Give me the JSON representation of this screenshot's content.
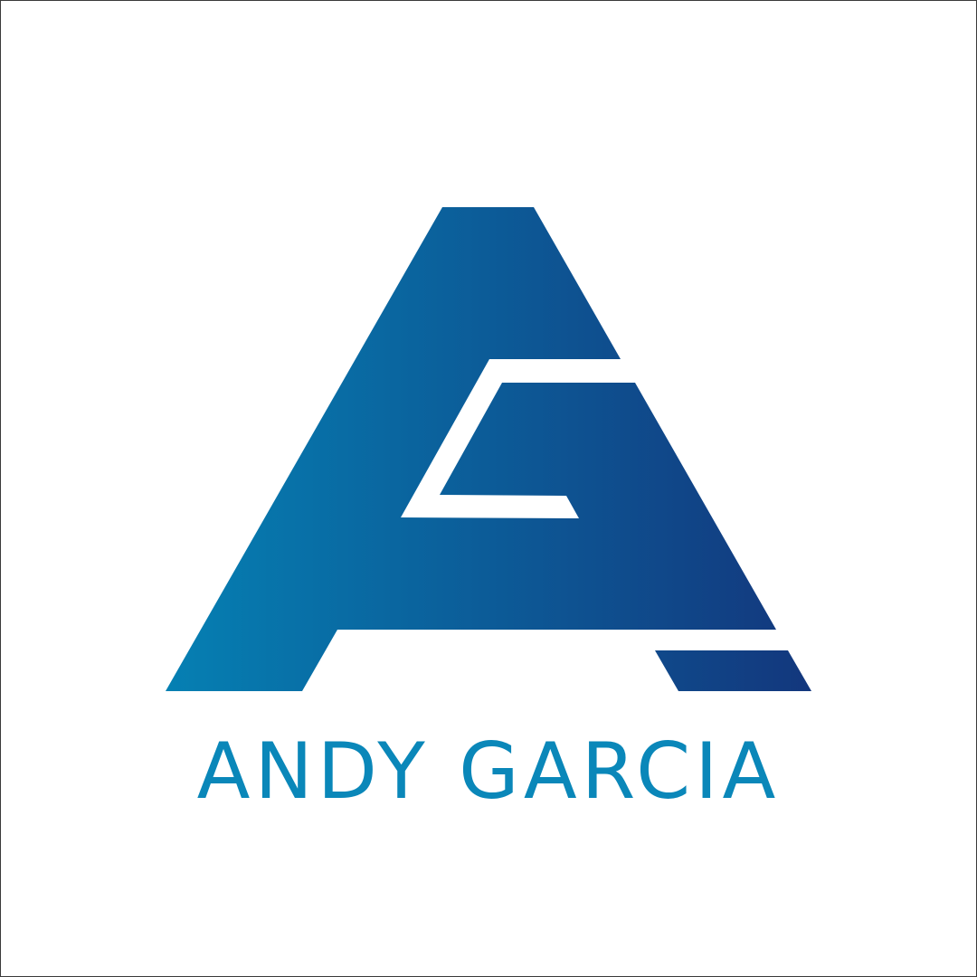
{
  "brand": {
    "name": "ANDY GARCIA",
    "logo_icon": "ag-monogram-icon"
  },
  "colors": {
    "background": "#ffffff",
    "border": "#3a3a3a",
    "gradient_start": "#0580b3",
    "gradient_end": "#13377d",
    "text": "#0a87b9"
  }
}
